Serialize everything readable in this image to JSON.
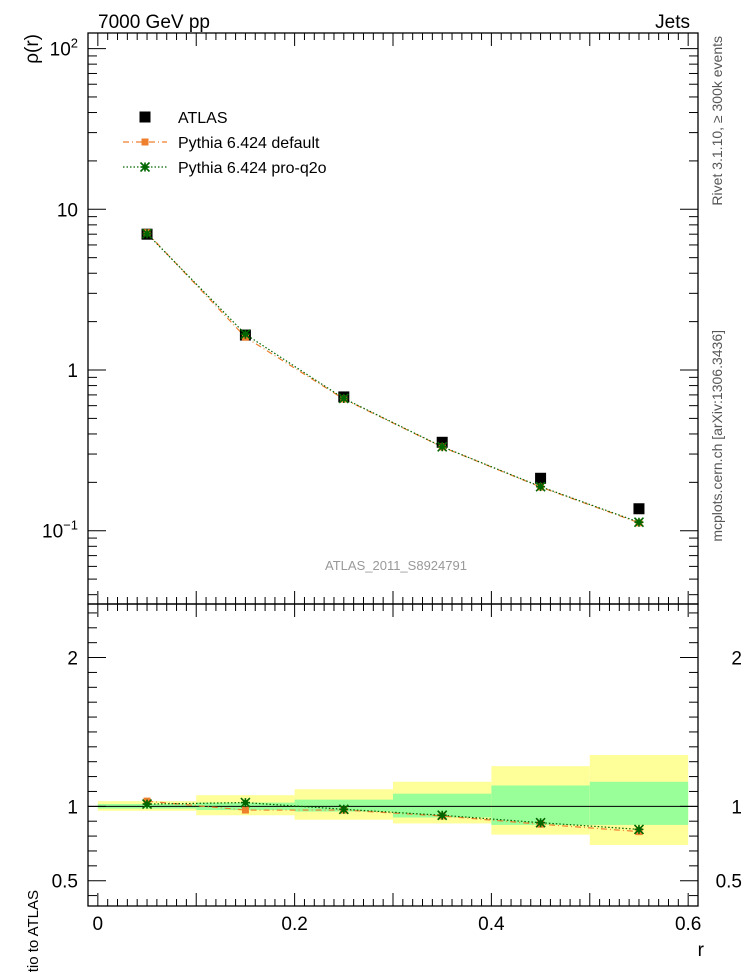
{
  "header": {
    "left_title": "7000 GeV pp",
    "right_title": "Jets"
  },
  "side_labels": {
    "rivet": "Rivet 3.1.10, ≥ 300k events",
    "mcplots": "mcplots.cern.ch [arXiv:1306.3436]"
  },
  "analysis_label": "ATLAS_2011_S8924791",
  "chart_data": [
    {
      "type": "scatter",
      "panel": "main",
      "ylabel": "ρ(r)",
      "xlabel": "r",
      "yscale": "log",
      "xlim": [
        -0.01,
        0.61
      ],
      "ylim": [
        0.035,
        125
      ],
      "x_ticks": [
        "0",
        "0.2",
        "0.4",
        "0.6"
      ],
      "y_ticks": [
        {
          "base": "10",
          "exp": "−1",
          "value": 0.1
        },
        {
          "base": "1",
          "exp": "",
          "value": 1
        },
        {
          "base": "10",
          "exp": "",
          "value": 10
        },
        {
          "base": "10",
          "exp": "2",
          "value": 100
        }
      ],
      "x": [
        0.05,
        0.15,
        0.25,
        0.35,
        0.45,
        0.55
      ],
      "series": [
        {
          "name": "ATLAS",
          "color": "#000000",
          "marker": "square",
          "values": [
            7.0,
            1.65,
            0.68,
            0.355,
            0.212,
            0.137
          ]
        },
        {
          "name": "Pythia 6.424 default",
          "color": "#ee7f2d",
          "marker": "square",
          "line": "dashdot",
          "values": [
            7.15,
            1.6,
            0.66,
            0.332,
            0.187,
            0.112
          ]
        },
        {
          "name": "Pythia 6.424 pro-q2o",
          "color": "#006600",
          "marker": "star",
          "line": "dotted",
          "values": [
            7.05,
            1.67,
            0.665,
            0.333,
            0.188,
            0.113
          ]
        }
      ],
      "legend_position": "top-left"
    },
    {
      "type": "scatter",
      "panel": "ratio",
      "ylabel": "Ratio to ATLAS",
      "xlabel": "r",
      "ylim": [
        0.33,
        2.36
      ],
      "y_ticks": [
        "0.5",
        "1",
        "2"
      ],
      "x": [
        0.05,
        0.15,
        0.25,
        0.35,
        0.45,
        0.55
      ],
      "band_edges": [
        0.0,
        0.1,
        0.2,
        0.3,
        0.4,
        0.5,
        0.6
      ],
      "stat_band": {
        "color": "#99ff99",
        "lo": [
          0.985,
          0.975,
          0.965,
          0.925,
          0.875,
          0.875
        ],
        "hi": [
          1.015,
          1.025,
          1.045,
          1.085,
          1.14,
          1.165
        ]
      },
      "total_band": {
        "color": "#ffff99",
        "lo": [
          0.97,
          0.94,
          0.91,
          0.885,
          0.81,
          0.74
        ],
        "hi": [
          1.035,
          1.075,
          1.115,
          1.165,
          1.27,
          1.345
        ]
      },
      "series": [
        {
          "name": "Pythia 6.424 default",
          "color": "#ee7f2d",
          "marker": "square",
          "values": [
            1.035,
            0.975,
            0.975,
            0.935,
            0.88,
            0.83
          ]
        },
        {
          "name": "Pythia 6.424 pro-q2o",
          "color": "#006600",
          "marker": "star",
          "values": [
            1.015,
            1.025,
            0.98,
            0.94,
            0.89,
            0.845
          ]
        }
      ]
    }
  ]
}
